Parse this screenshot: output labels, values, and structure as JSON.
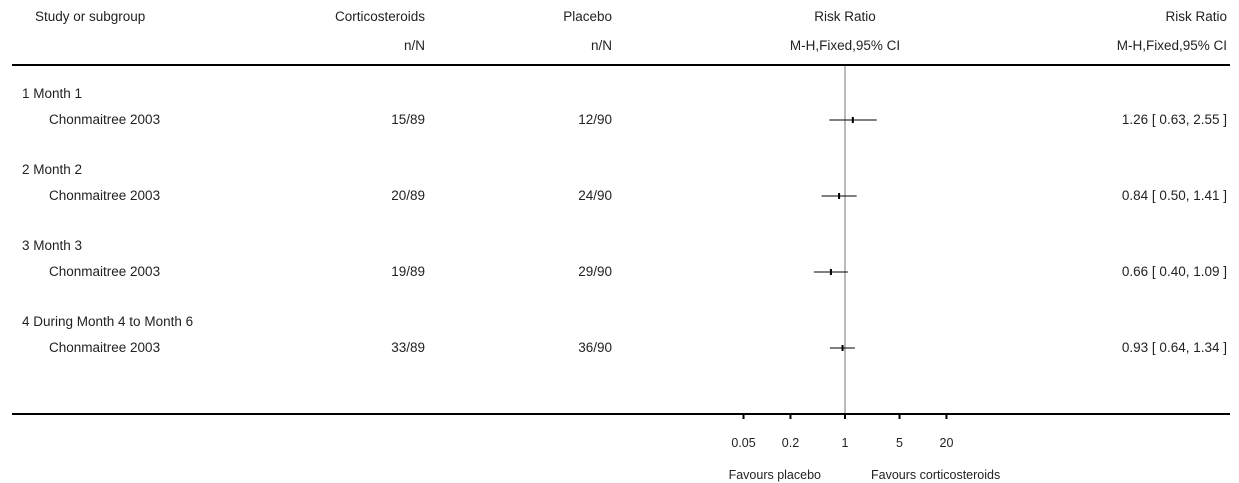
{
  "header": {
    "study_label": "Study or subgroup",
    "group1": "Corticosteroids",
    "group2": "Placebo",
    "n_label1": "n/N",
    "n_label2": "n/N",
    "plot_title": "Risk Ratio",
    "plot_method": "M-H,Fixed,95% CI",
    "result_title": "Risk Ratio",
    "result_method": "M-H,Fixed,95% CI"
  },
  "axis": {
    "ticks": [
      "0.05",
      "0.2",
      "1",
      "5",
      "20"
    ],
    "favours_left": "Favours placebo",
    "favours_right": "Favours corticosteroids"
  },
  "chart_data": {
    "type": "forest",
    "scale": "log",
    "xlim": [
      0.05,
      20
    ],
    "null_value": 1,
    "subgroups": [
      {
        "label": "1 Month 1",
        "studies": [
          {
            "name": "Chonmaitree 2003",
            "events1": "15/89",
            "events2": "12/90",
            "rr": 1.26,
            "ci": [
              0.63,
              2.55
            ],
            "ci_text": "1.26 [ 0.63, 2.55 ]"
          }
        ]
      },
      {
        "label": "2 Month 2",
        "studies": [
          {
            "name": "Chonmaitree 2003",
            "events1": "20/89",
            "events2": "24/90",
            "rr": 0.84,
            "ci": [
              0.5,
              1.41
            ],
            "ci_text": "0.84 [ 0.50, 1.41 ]"
          }
        ]
      },
      {
        "label": "3 Month 3",
        "studies": [
          {
            "name": "Chonmaitree 2003",
            "events1": "19/89",
            "events2": "29/90",
            "rr": 0.66,
            "ci": [
              0.4,
              1.09
            ],
            "ci_text": "0.66 [ 0.40, 1.09 ]"
          }
        ]
      },
      {
        "label": "4 During Month 4 to Month 6",
        "studies": [
          {
            "name": "Chonmaitree 2003",
            "events1": "33/89",
            "events2": "36/90",
            "rr": 0.93,
            "ci": [
              0.64,
              1.34
            ],
            "ci_text": "0.93 [ 0.64, 1.34 ]"
          }
        ]
      }
    ]
  }
}
